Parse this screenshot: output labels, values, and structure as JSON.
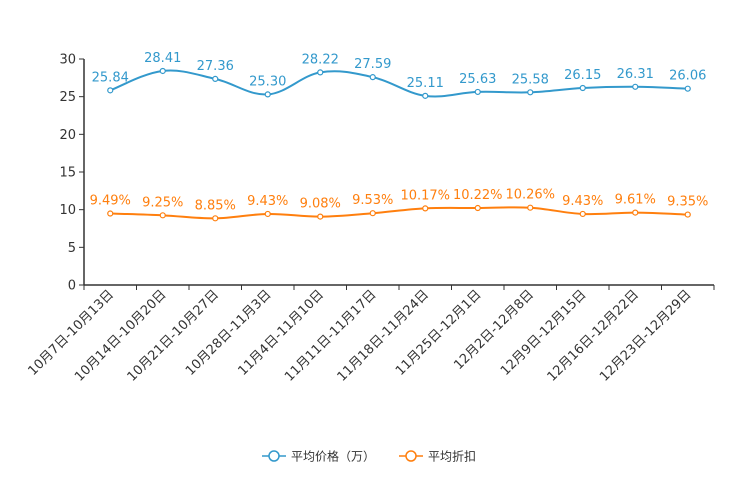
{
  "chart_data": {
    "type": "line",
    "categories": [
      "10月7日-10月13日",
      "10月14日-10月20日",
      "10月21日-10月27日",
      "10月28日-11月3日",
      "11月4日-11月10日",
      "11月11日-11月17日",
      "11月18日-11月24日",
      "11月25日-12月1日",
      "12月2日-12月8日",
      "12月9日-12月15日",
      "12月16日-12月22日",
      "12月23日-12月29日"
    ],
    "series": [
      {
        "name": "平均价格（万）",
        "color": "#3399cc",
        "values": [
          25.84,
          28.41,
          27.36,
          25.3,
          28.22,
          27.59,
          25.11,
          25.63,
          25.58,
          26.15,
          26.31,
          26.06
        ],
        "labels": [
          "25.84",
          "28.41",
          "27.36",
          "25.30",
          "28.22",
          "27.59",
          "25.11",
          "25.63",
          "25.58",
          "26.15",
          "26.31",
          "26.06"
        ]
      },
      {
        "name": "平均折扣",
        "color": "#ff7f0e",
        "values": [
          9.49,
          9.25,
          8.85,
          9.43,
          9.08,
          9.53,
          10.17,
          10.22,
          10.26,
          9.43,
          9.61,
          9.35
        ],
        "labels": [
          "9.49%",
          "9.25%",
          "8.85%",
          "9.43%",
          "9.08%",
          "9.53%",
          "10.17%",
          "10.22%",
          "10.26%",
          "9.43%",
          "9.61%",
          "9.35%"
        ]
      }
    ],
    "yticks": [
      "0",
      "5",
      "10",
      "15",
      "20",
      "25",
      "30"
    ],
    "ylim": [
      0,
      30
    ],
    "title": "",
    "xlabel": "",
    "ylabel": "",
    "grid": false,
    "legend_position": "bottom-center"
  }
}
